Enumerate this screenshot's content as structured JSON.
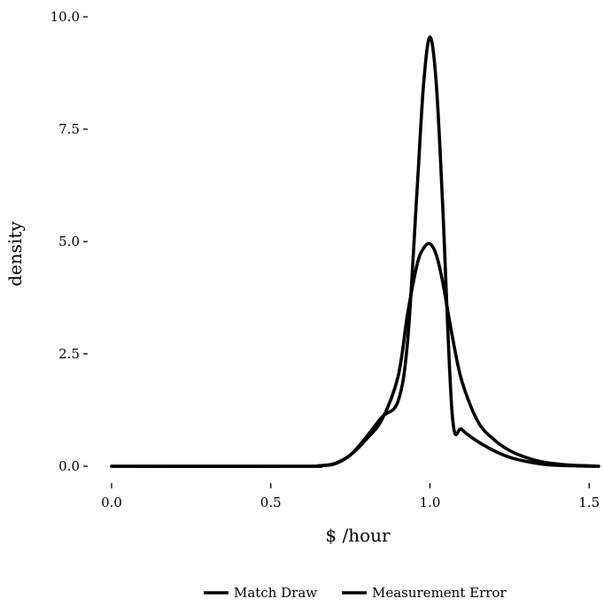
{
  "chart_data": {
    "type": "line",
    "title": "",
    "xlabel": "$ /hour",
    "ylabel": "density",
    "xlim": [
      0.0,
      1.53
    ],
    "ylim": [
      0.0,
      10.0
    ],
    "x_ticks": [
      0.0,
      0.5,
      1.0,
      1.5
    ],
    "x_tick_labels": [
      "0.0",
      "0.5",
      "1.0",
      "1.5"
    ],
    "y_ticks": [
      0.0,
      2.5,
      5.0,
      7.5,
      10.0
    ],
    "y_tick_labels": [
      "0.0",
      "2.5",
      "5.0",
      "7.5",
      "10.0"
    ],
    "grid": false,
    "legend_position": "bottom",
    "line_color": "#000000",
    "series": [
      {
        "name": "Match Draw",
        "x": [
          0.0,
          0.6,
          0.65,
          0.7,
          0.75,
          0.8,
          0.85,
          0.9,
          0.93,
          0.96,
          0.98,
          1.0,
          1.02,
          1.04,
          1.07,
          1.1,
          1.15,
          1.2,
          1.25,
          1.3,
          1.35,
          1.4,
          1.45,
          1.5,
          1.53
        ],
        "values": [
          0.0,
          0.0,
          0.01,
          0.05,
          0.25,
          0.65,
          1.1,
          1.45,
          2.8,
          6.2,
          8.5,
          9.55,
          8.5,
          5.8,
          1.15,
          0.82,
          0.55,
          0.35,
          0.2,
          0.11,
          0.05,
          0.02,
          0.01,
          0.0,
          0.0
        ]
      },
      {
        "name": "Measurement Error",
        "x": [
          0.0,
          0.6,
          0.65,
          0.7,
          0.75,
          0.8,
          0.85,
          0.9,
          0.93,
          0.96,
          0.98,
          1.0,
          1.02,
          1.04,
          1.07,
          1.1,
          1.15,
          1.2,
          1.25,
          1.3,
          1.35,
          1.4,
          1.45,
          1.5,
          1.53
        ],
        "values": [
          0.0,
          0.0,
          0.01,
          0.06,
          0.25,
          0.6,
          1.05,
          2.0,
          3.4,
          4.5,
          4.85,
          4.95,
          4.7,
          4.1,
          2.9,
          1.9,
          1.0,
          0.6,
          0.35,
          0.2,
          0.1,
          0.05,
          0.02,
          0.01,
          0.0
        ]
      }
    ]
  }
}
